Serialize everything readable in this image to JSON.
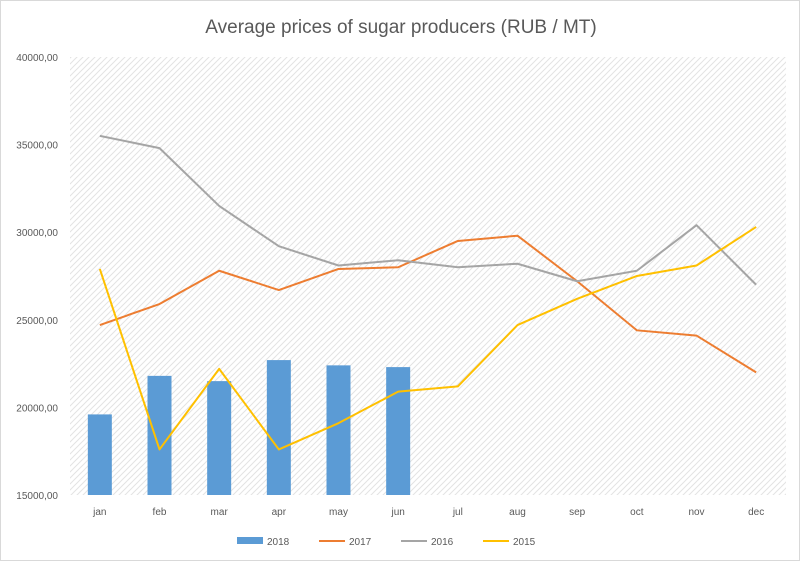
{
  "chart_data": {
    "type": "bar",
    "title": "Average prices of sugar producers (RUB / MT)",
    "xlabel": "",
    "ylabel": "",
    "categories": [
      "jan",
      "feb",
      "mar",
      "apr",
      "may",
      "jun",
      "jul",
      "aug",
      "sep",
      "oct",
      "nov",
      "dec"
    ],
    "ylim": [
      15000,
      40000
    ],
    "yticks": [
      "15000,00",
      "20000,00",
      "25000,00",
      "30000,00",
      "35000,00",
      "40000,00"
    ],
    "grid": "diagonal hatch pattern background, no gridlines",
    "legend_position": "bottom",
    "series": [
      {
        "name": "2018",
        "type": "bar",
        "color": "#5b9bd5",
        "values": [
          19600,
          21800,
          21500,
          22700,
          22400,
          22300,
          null,
          null,
          null,
          null,
          null,
          null
        ]
      },
      {
        "name": "2017",
        "type": "line",
        "color": "#ed7d31",
        "values": [
          24700,
          25900,
          27800,
          26700,
          27900,
          28000,
          29500,
          29800,
          27200,
          24400,
          24100,
          22000
        ]
      },
      {
        "name": "2016",
        "type": "line",
        "color": "#a5a5a5",
        "values": [
          35500,
          34800,
          31500,
          29200,
          28100,
          28400,
          28000,
          28200,
          27200,
          27800,
          30400,
          27000
        ]
      },
      {
        "name": "2015",
        "type": "line",
        "color": "#ffc000",
        "values": [
          27900,
          17600,
          22200,
          17600,
          19100,
          20900,
          21200,
          24700,
          26200,
          27500,
          28100,
          30300
        ]
      }
    ]
  }
}
